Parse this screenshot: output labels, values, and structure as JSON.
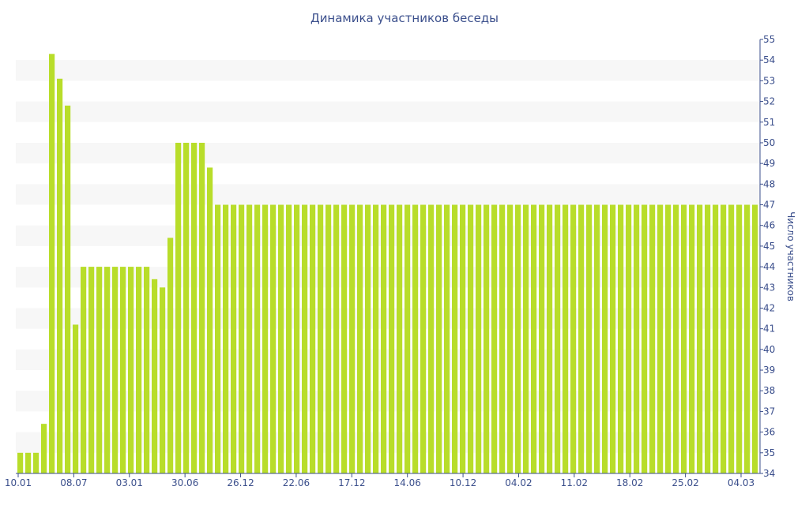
{
  "chart_data": {
    "type": "bar",
    "title": "Динамика участников беседы",
    "xlabel": "",
    "ylabel": "Число участников",
    "ylim": [
      34,
      55
    ],
    "y_axis_side": "right",
    "grid": "alternating horizontal bands",
    "x_tick_labels": [
      "10.01",
      "08.07",
      "03.01",
      "30.06",
      "26.12",
      "22.06",
      "17.12",
      "14.06",
      "10.12",
      "04.02",
      "11.02",
      "18.02",
      "25.02",
      "04.03"
    ],
    "y_tick_labels": [
      "34",
      "35",
      "36",
      "37",
      "38",
      "39",
      "40",
      "41",
      "42",
      "43",
      "44",
      "45",
      "46",
      "47",
      "48",
      "49",
      "50",
      "51",
      "52",
      "53",
      "54",
      "55"
    ],
    "series": [
      {
        "values": [
          35,
          35,
          35,
          36.4,
          54.3,
          53.1,
          51.8,
          41.2,
          44,
          44,
          44,
          44,
          44,
          44,
          44,
          44,
          44,
          43.4,
          43,
          45.4,
          50,
          50,
          50,
          50,
          48.8,
          47,
          47,
          47,
          47,
          47,
          47,
          47,
          47,
          47,
          47,
          47,
          47,
          47,
          47,
          47,
          47,
          47,
          47,
          47,
          47,
          47,
          47,
          47,
          47,
          47,
          47,
          47,
          47,
          47,
          47,
          47,
          47,
          47,
          47,
          47,
          47,
          47,
          47,
          47,
          47,
          47,
          47,
          47,
          47,
          47,
          47,
          47,
          47,
          47,
          47,
          47,
          47,
          47,
          47,
          47,
          47,
          47,
          47,
          47,
          47,
          47,
          47,
          47,
          47,
          47,
          47,
          47,
          47,
          47
        ]
      }
    ],
    "colors": {
      "bar": "#b8dd2a",
      "band": "#f7f7f7",
      "text": "#3b4f8c",
      "axis": "#3b4f8c"
    }
  }
}
